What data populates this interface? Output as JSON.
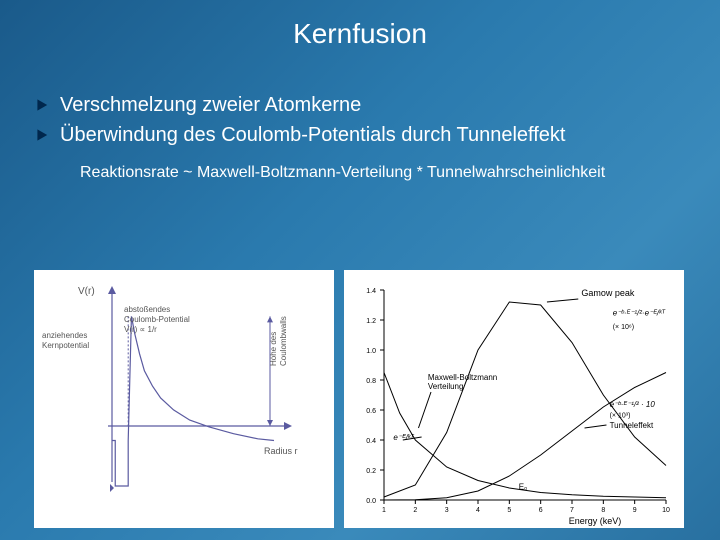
{
  "slide": {
    "title": "Kernfusion",
    "bullets": [
      "Verschmelzung zweier Atomkerne",
      "Überwindung des Coulomb-Potentials durch Tunneleffekt"
    ],
    "equation": "Reaktionsrate ~ Maxwell-Boltzmann-Verteilung * Tunnelwahrscheinlichkeit",
    "bullet_icon_color": "#00274d",
    "text_color": "#ffffff",
    "bg_gradient": [
      "#1a5a8a",
      "#3a8abb"
    ]
  },
  "figL": {
    "type": "line",
    "axis_color": "#5a5aa0",
    "line_color": "#5a5aa0",
    "line_width": 1.2,
    "bg": "#ffffff",
    "well_depth": 0.85,
    "well_width": 0.1,
    "coulomb_label": "Coulomb-Potential\nV(r) ∝ 1/r",
    "abscissa_label": "Radius r",
    "ylabels": {
      "top": "V(r)",
      "kern_anz": "anziehendes\nKernpotential",
      "abst": "abstoßendes",
      "barrier": "Höhe des\nCoulombwalls"
    },
    "curve": [
      [
        0.12,
        0.88
      ],
      [
        0.14,
        0.78
      ],
      [
        0.17,
        0.66
      ],
      [
        0.2,
        0.56
      ],
      [
        0.25,
        0.47
      ],
      [
        0.3,
        0.4
      ],
      [
        0.38,
        0.33
      ],
      [
        0.48,
        0.27
      ],
      [
        0.6,
        0.23
      ],
      [
        0.75,
        0.19
      ],
      [
        0.9,
        0.16
      ],
      [
        1.0,
        0.15
      ]
    ],
    "well_path": [
      [
        0.0,
        0.15
      ],
      [
        0.02,
        0.15
      ],
      [
        0.02,
        0.92
      ],
      [
        0.1,
        0.92
      ],
      [
        0.1,
        0.15
      ],
      [
        0.12,
        0.88
      ]
    ],
    "label_fontsize": 8,
    "text_color": "#555555"
  },
  "figR": {
    "type": "line",
    "axis_color": "#000000",
    "line_color": "#000000",
    "line_width": 1.0,
    "bg": "#ffffff",
    "xlabel": "Energy (keV)",
    "ytick": [
      0.0,
      0.2,
      0.4,
      0.6,
      0.8,
      1.0,
      1.2,
      1.4
    ],
    "xtick": [
      1,
      2,
      3,
      4,
      5,
      6,
      7,
      8,
      9,
      10
    ],
    "label_fontsize": 8,
    "tick_fontsize": 7,
    "text_color": "#000000",
    "annotations": {
      "gamow": "Gamow peak",
      "mb": "Maxwell-Boltzmann\nVerteilung",
      "tunnel": "Tunneleffekt",
      "factor_left": "e⁻ᴱ/ᵏᵀ",
      "factor_right1": "e⁻ᵇ·ᴱ⁻¹/²·e⁻ᴱ/ᵏᵀ",
      "factor_right1_scale": "(× 10⁶)",
      "factor_right2": "e⁻ᵇ·ᴱ⁻¹/² · 10",
      "factor_right2_scale": "(× 10³)",
      "e0": "E₀"
    },
    "series": {
      "gamow": [
        [
          1,
          0.02
        ],
        [
          2,
          0.1
        ],
        [
          3,
          0.45
        ],
        [
          4,
          1.0
        ],
        [
          5,
          1.32
        ],
        [
          6,
          1.3
        ],
        [
          7,
          1.05
        ],
        [
          8,
          0.7
        ],
        [
          9,
          0.42
        ],
        [
          10,
          0.23
        ]
      ],
      "mb": [
        [
          1,
          0.85
        ],
        [
          1.5,
          0.58
        ],
        [
          2,
          0.4
        ],
        [
          3,
          0.22
        ],
        [
          4,
          0.13
        ],
        [
          5,
          0.08
        ],
        [
          6,
          0.05
        ],
        [
          7,
          0.035
        ],
        [
          8,
          0.025
        ],
        [
          9,
          0.02
        ],
        [
          10,
          0.015
        ]
      ],
      "tunnel": [
        [
          1,
          0.0
        ],
        [
          2,
          0.002
        ],
        [
          3,
          0.015
        ],
        [
          4,
          0.06
        ],
        [
          5,
          0.16
        ],
        [
          6,
          0.3
        ],
        [
          7,
          0.46
        ],
        [
          8,
          0.62
        ],
        [
          9,
          0.75
        ],
        [
          10,
          0.85
        ]
      ]
    }
  }
}
